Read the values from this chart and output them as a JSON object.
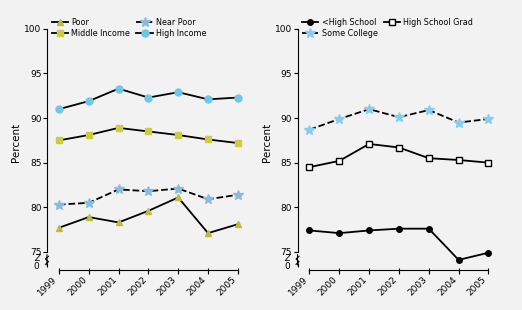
{
  "years": [
    1999,
    2000,
    2001,
    2002,
    2003,
    2004,
    2005
  ],
  "income": {
    "High Income": {
      "values": [
        91.0,
        91.9,
        93.3,
        92.3,
        92.9,
        92.1,
        92.3
      ],
      "color": "#6ec6e8",
      "marker": "o",
      "linestyle": "-",
      "markersize": 5
    },
    "Middle Income": {
      "values": [
        87.5,
        88.1,
        88.9,
        88.5,
        88.1,
        87.6,
        87.2
      ],
      "color": "#cccc44",
      "marker": "s",
      "linestyle": "-",
      "markersize": 4
    },
    "Near Poor": {
      "values": [
        80.3,
        80.5,
        82.0,
        81.8,
        82.1,
        80.9,
        81.4
      ],
      "color": "#88bbdd",
      "marker": "*",
      "linestyle": "--",
      "markersize": 7
    },
    "Poor": {
      "values": [
        77.7,
        78.9,
        78.3,
        79.6,
        81.1,
        77.1,
        78.1
      ],
      "color": "#bbbb44",
      "marker": "^",
      "linestyle": "-",
      "markersize": 5
    }
  },
  "education": {
    "Some College": {
      "values": [
        88.7,
        89.9,
        91.0,
        90.1,
        90.9,
        89.5,
        89.9
      ],
      "color": "#88ccee",
      "marker": "*",
      "linestyle": "--",
      "markersize": 7,
      "mfc": "#88ccee",
      "mec": "#88ccee"
    },
    "High School Grad": {
      "values": [
        84.5,
        85.2,
        87.1,
        86.7,
        85.5,
        85.3,
        85.0
      ],
      "color": "#000000",
      "marker": "s",
      "linestyle": "-",
      "markersize": 4,
      "mfc": "#ffffff",
      "mec": "#000000"
    },
    "<High School": {
      "values": [
        77.4,
        77.1,
        77.4,
        77.6,
        77.6,
        74.1,
        74.9
      ],
      "color": "#000000",
      "marker": "o",
      "linestyle": "-",
      "markersize": 4,
      "mfc": "#000000",
      "mec": "#000000"
    }
  },
  "ylabel": "Percent",
  "bg_color": "#f2f2f2"
}
